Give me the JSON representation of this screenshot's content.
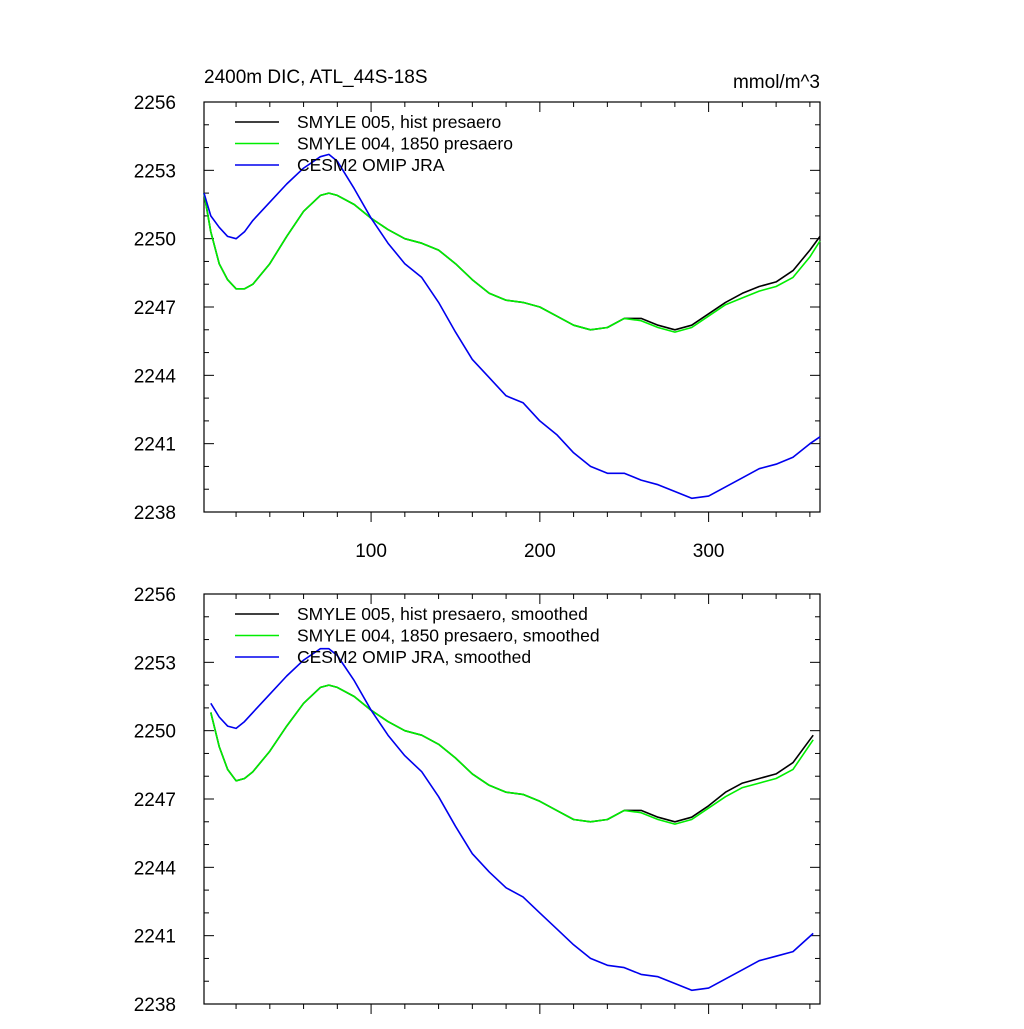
{
  "chart_data": [
    {
      "type": "line",
      "title": "2400m DIC, ATL_44S-18S",
      "units": "mmol/m^3",
      "xlim": [
        1,
        366
      ],
      "ylim": [
        2238,
        2256
      ],
      "yticks": [
        "2256",
        "2253",
        "2250",
        "2247",
        "2244",
        "2241",
        "2238"
      ],
      "xticks": [
        "100",
        "200",
        "300"
      ],
      "grid": false,
      "legend_position": "top-left",
      "series": [
        {
          "name": "SMYLE 005, hist presaero",
          "color": "#000000",
          "x": [
            1,
            5,
            10,
            15,
            20,
            25,
            30,
            40,
            50,
            60,
            70,
            75,
            80,
            90,
            100,
            110,
            120,
            130,
            140,
            150,
            160,
            170,
            180,
            190,
            200,
            210,
            220,
            230,
            240,
            250,
            260,
            270,
            280,
            290,
            300,
            310,
            320,
            330,
            340,
            350,
            360,
            366
          ],
          "y": [
            2252.0,
            2250.3,
            2248.9,
            2248.2,
            2247.8,
            2247.8,
            2248.0,
            2248.9,
            2250.1,
            2251.2,
            2251.9,
            2252.0,
            2251.9,
            2251.5,
            2250.9,
            2250.4,
            2250.0,
            2249.8,
            2249.5,
            2248.9,
            2248.2,
            2247.6,
            2247.3,
            2247.2,
            2247.0,
            2246.6,
            2246.2,
            2246.0,
            2246.1,
            2246.5,
            2246.5,
            2246.2,
            2246.0,
            2246.2,
            2246.7,
            2247.2,
            2247.6,
            2247.9,
            2248.1,
            2248.6,
            2249.5,
            2250.1
          ]
        },
        {
          "name": "SMYLE 004, 1850 presaero",
          "color": "#00ee00",
          "x": [
            1,
            5,
            10,
            15,
            20,
            25,
            30,
            40,
            50,
            60,
            70,
            75,
            80,
            90,
            100,
            110,
            120,
            130,
            140,
            150,
            160,
            170,
            180,
            190,
            200,
            210,
            220,
            230,
            240,
            250,
            260,
            270,
            280,
            290,
            300,
            310,
            320,
            330,
            340,
            350,
            360,
            366
          ],
          "y": [
            2252.0,
            2250.3,
            2248.9,
            2248.2,
            2247.8,
            2247.8,
            2248.0,
            2248.9,
            2250.1,
            2251.2,
            2251.9,
            2252.0,
            2251.9,
            2251.5,
            2250.9,
            2250.4,
            2250.0,
            2249.8,
            2249.5,
            2248.9,
            2248.2,
            2247.6,
            2247.3,
            2247.2,
            2247.0,
            2246.6,
            2246.2,
            2246.0,
            2246.1,
            2246.5,
            2246.4,
            2246.1,
            2245.9,
            2246.1,
            2246.6,
            2247.1,
            2247.4,
            2247.7,
            2247.9,
            2248.3,
            2249.2,
            2249.9
          ]
        },
        {
          "name": "CESM2 OMIP JRA",
          "color": "#0000ee",
          "x": [
            1,
            5,
            10,
            15,
            20,
            25,
            30,
            40,
            50,
            60,
            70,
            75,
            80,
            90,
            100,
            110,
            120,
            130,
            140,
            150,
            160,
            170,
            180,
            190,
            200,
            210,
            220,
            230,
            240,
            250,
            260,
            270,
            280,
            290,
            300,
            310,
            320,
            330,
            340,
            350,
            360,
            366
          ],
          "y": [
            2252.0,
            2251.0,
            2250.5,
            2250.1,
            2250.0,
            2250.3,
            2250.8,
            2251.6,
            2252.4,
            2253.1,
            2253.6,
            2253.7,
            2253.4,
            2252.2,
            2250.9,
            2249.8,
            2248.9,
            2248.3,
            2247.2,
            2245.9,
            2244.7,
            2243.9,
            2243.1,
            2242.8,
            2242.0,
            2241.4,
            2240.6,
            2240.0,
            2239.7,
            2239.7,
            2239.4,
            2239.2,
            2238.9,
            2238.6,
            2238.7,
            2239.1,
            2239.5,
            2239.9,
            2240.1,
            2240.4,
            2241.0,
            2241.3
          ]
        }
      ]
    },
    {
      "type": "line",
      "title": "",
      "xlim": [
        1,
        366
      ],
      "ylim": [
        2238,
        2256
      ],
      "yticks": [
        "2256",
        "2253",
        "2250",
        "2247",
        "2244",
        "2241",
        "2238"
      ],
      "xticks": [],
      "grid": false,
      "legend_position": "top-left",
      "series": [
        {
          "name": "SMYLE 005, hist presaero, smoothed",
          "color": "#000000",
          "x": [
            5,
            10,
            15,
            20,
            25,
            30,
            40,
            50,
            60,
            70,
            75,
            80,
            90,
            100,
            110,
            120,
            130,
            140,
            150,
            160,
            170,
            180,
            190,
            200,
            210,
            220,
            230,
            240,
            250,
            260,
            270,
            280,
            290,
            300,
            310,
            320,
            330,
            340,
            350,
            362
          ],
          "y": [
            2250.8,
            2249.3,
            2248.3,
            2247.8,
            2247.9,
            2248.2,
            2249.1,
            2250.2,
            2251.2,
            2251.9,
            2252.0,
            2251.9,
            2251.5,
            2250.9,
            2250.4,
            2250.0,
            2249.8,
            2249.4,
            2248.8,
            2248.1,
            2247.6,
            2247.3,
            2247.2,
            2246.9,
            2246.5,
            2246.1,
            2246.0,
            2246.1,
            2246.5,
            2246.5,
            2246.2,
            2246.0,
            2246.2,
            2246.7,
            2247.3,
            2247.7,
            2247.9,
            2248.1,
            2248.6,
            2249.8
          ]
        },
        {
          "name": "SMYLE 004, 1850 presaero, smoothed",
          "color": "#00ee00",
          "x": [
            5,
            10,
            15,
            20,
            25,
            30,
            40,
            50,
            60,
            70,
            75,
            80,
            90,
            100,
            110,
            120,
            130,
            140,
            150,
            160,
            170,
            180,
            190,
            200,
            210,
            220,
            230,
            240,
            250,
            260,
            270,
            280,
            290,
            300,
            310,
            320,
            330,
            340,
            350,
            362
          ],
          "y": [
            2250.8,
            2249.3,
            2248.3,
            2247.8,
            2247.9,
            2248.2,
            2249.1,
            2250.2,
            2251.2,
            2251.9,
            2252.0,
            2251.9,
            2251.5,
            2250.9,
            2250.4,
            2250.0,
            2249.8,
            2249.4,
            2248.8,
            2248.1,
            2247.6,
            2247.3,
            2247.2,
            2246.9,
            2246.5,
            2246.1,
            2246.0,
            2246.1,
            2246.5,
            2246.4,
            2246.1,
            2245.9,
            2246.1,
            2246.6,
            2247.1,
            2247.5,
            2247.7,
            2247.9,
            2248.3,
            2249.6
          ]
        },
        {
          "name": "CESM2 OMIP JRA, smoothed",
          "color": "#0000ee",
          "x": [
            5,
            10,
            15,
            20,
            25,
            30,
            40,
            50,
            60,
            70,
            75,
            80,
            90,
            100,
            110,
            120,
            130,
            140,
            150,
            160,
            170,
            180,
            190,
            200,
            210,
            220,
            230,
            240,
            250,
            260,
            270,
            280,
            290,
            300,
            310,
            320,
            330,
            340,
            350,
            362
          ],
          "y": [
            2251.2,
            2250.6,
            2250.2,
            2250.1,
            2250.4,
            2250.8,
            2251.6,
            2252.4,
            2253.1,
            2253.6,
            2253.6,
            2253.3,
            2252.2,
            2250.9,
            2249.8,
            2248.9,
            2248.2,
            2247.1,
            2245.8,
            2244.6,
            2243.8,
            2243.1,
            2242.7,
            2242.0,
            2241.3,
            2240.6,
            2240.0,
            2239.7,
            2239.6,
            2239.3,
            2239.2,
            2238.9,
            2238.6,
            2238.7,
            2239.1,
            2239.5,
            2239.9,
            2240.1,
            2240.3,
            2241.1
          ]
        }
      ]
    }
  ]
}
